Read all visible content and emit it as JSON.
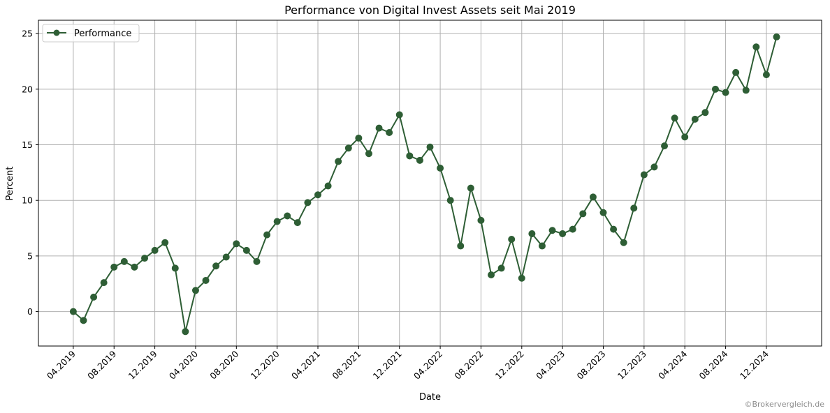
{
  "chart_data": {
    "type": "line",
    "title": "Performance von Digital Invest Assets seit Mai 2019",
    "xlabel": "Date",
    "ylabel": "Percent",
    "ylim": [
      -3.1,
      26.2
    ],
    "yticks": [
      0,
      5,
      10,
      15,
      20,
      25
    ],
    "xticks": [
      "04.2019",
      "08.2019",
      "12.2019",
      "04.2020",
      "08.2020",
      "12.2020",
      "04.2021",
      "08.2021",
      "12.2021",
      "04.2022",
      "08.2022",
      "12.2022",
      "04.2023",
      "08.2023",
      "12.2023",
      "04.2024",
      "08.2024",
      "12.2024"
    ],
    "x_start": "2019-04",
    "x_end": "2025-02",
    "grid": true,
    "legend_position": "upper left",
    "colors": {
      "line": "#2e5e35",
      "grid": "#b0b0b0"
    },
    "series": [
      {
        "name": "Performance",
        "x": [
          "2019-04",
          "2019-05",
          "2019-06",
          "2019-07",
          "2019-08",
          "2019-09",
          "2019-10",
          "2019-11",
          "2019-12",
          "2020-01",
          "2020-02",
          "2020-03",
          "2020-04",
          "2020-05",
          "2020-06",
          "2020-07",
          "2020-08",
          "2020-09",
          "2020-10",
          "2020-11",
          "2020-12",
          "2021-01",
          "2021-02",
          "2021-03",
          "2021-04",
          "2021-05",
          "2021-06",
          "2021-07",
          "2021-08",
          "2021-09",
          "2021-10",
          "2021-11",
          "2021-12",
          "2022-01",
          "2022-02",
          "2022-03",
          "2022-04",
          "2022-05",
          "2022-06",
          "2022-07",
          "2022-08",
          "2022-09",
          "2022-10",
          "2022-11",
          "2022-12",
          "2023-01",
          "2023-02",
          "2023-03",
          "2023-04",
          "2023-05",
          "2023-06",
          "2023-07",
          "2023-08",
          "2023-09",
          "2023-10",
          "2023-11",
          "2023-12",
          "2024-01",
          "2024-02",
          "2024-03",
          "2024-04",
          "2024-05",
          "2024-06",
          "2024-07",
          "2024-08",
          "2024-09",
          "2024-10",
          "2024-11",
          "2024-12",
          "2025-01"
        ],
        "values": [
          0.0,
          -0.8,
          1.3,
          2.6,
          4.0,
          4.5,
          4.0,
          4.8,
          5.5,
          6.2,
          3.9,
          -1.8,
          1.9,
          2.8,
          4.1,
          4.9,
          6.1,
          5.5,
          4.5,
          6.9,
          8.1,
          8.6,
          8.0,
          9.8,
          10.5,
          11.3,
          13.5,
          14.7,
          15.6,
          14.2,
          16.5,
          16.1,
          17.7,
          14.0,
          13.6,
          14.8,
          12.9,
          10.0,
          5.9,
          11.1,
          8.2,
          3.3,
          3.9,
          6.5,
          3.0,
          7.0,
          5.9,
          7.3,
          7.0,
          7.4,
          8.8,
          10.3,
          8.9,
          7.4,
          6.2,
          9.3,
          12.3,
          13.0,
          14.9,
          17.4,
          15.7,
          17.3,
          17.9,
          20.0,
          19.7,
          21.5,
          19.9,
          23.8,
          21.3,
          24.7
        ]
      }
    ]
  },
  "watermark": "©Brokervergleich.de"
}
